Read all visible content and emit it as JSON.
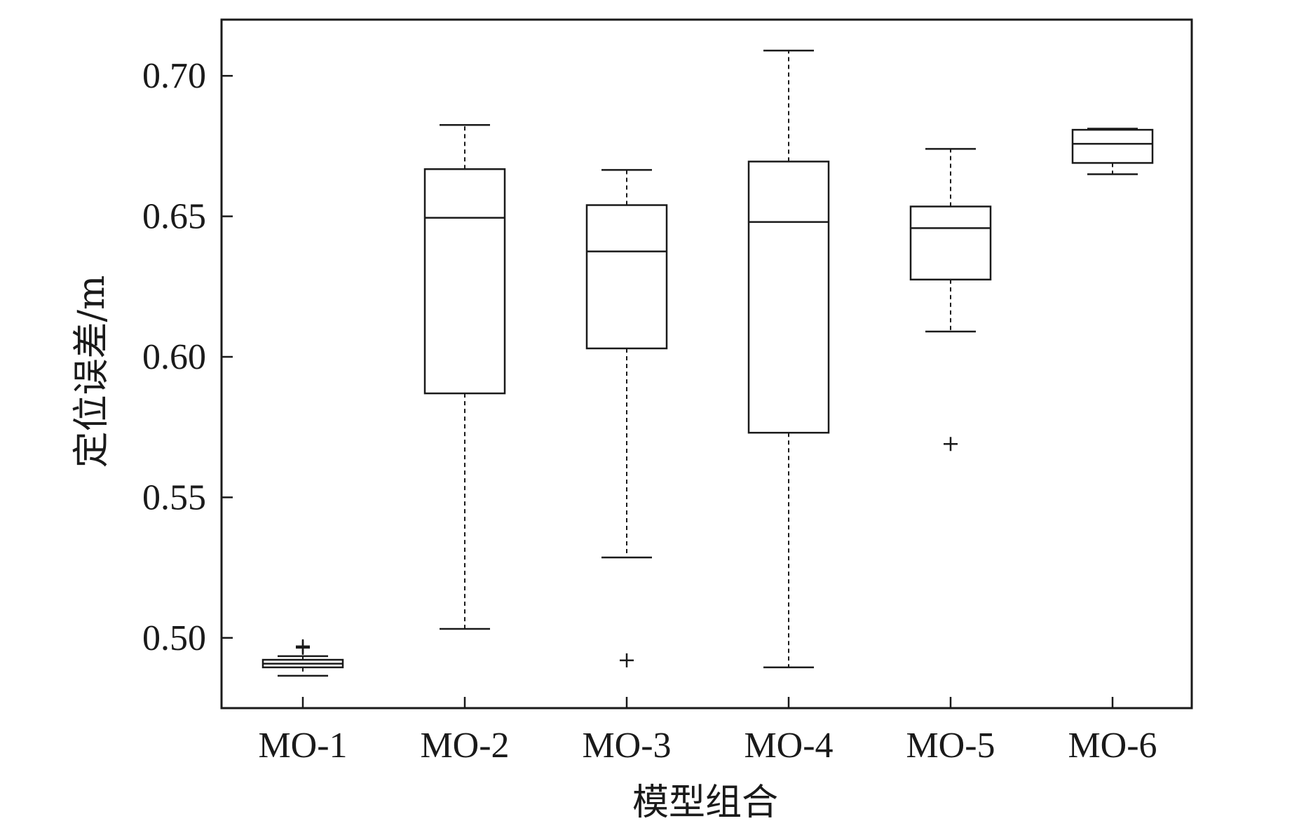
{
  "chart_data": {
    "type": "boxplot",
    "title": "",
    "xlabel": "模型组合",
    "ylabel": "定位误差/m",
    "ylim": [
      0.475,
      0.72
    ],
    "yticks": [
      "0.50",
      "0.55",
      "0.60",
      "0.65",
      "0.70"
    ],
    "categories": [
      "MO-1",
      "MO-2",
      "MO-3",
      "MO-4",
      "MO-5",
      "MO-6"
    ],
    "boxes": [
      {
        "label": "MO-1",
        "whisker_low": 0.4865,
        "q1": 0.4895,
        "median": 0.4908,
        "q3": 0.4922,
        "whisker_high": 0.4935,
        "outliers": [
          0.4965,
          0.497
        ]
      },
      {
        "label": "MO-2",
        "whisker_low": 0.5032,
        "q1": 0.587,
        "median": 0.6495,
        "q3": 0.6668,
        "whisker_high": 0.6825,
        "outliers": []
      },
      {
        "label": "MO-3",
        "whisker_low": 0.5286,
        "q1": 0.603,
        "median": 0.6375,
        "q3": 0.654,
        "whisker_high": 0.6665,
        "outliers": [
          0.492
        ]
      },
      {
        "label": "MO-4",
        "whisker_low": 0.4895,
        "q1": 0.573,
        "median": 0.648,
        "q3": 0.6695,
        "whisker_high": 0.709,
        "outliers": []
      },
      {
        "label": "MO-5",
        "whisker_low": 0.609,
        "q1": 0.6275,
        "median": 0.6458,
        "q3": 0.6535,
        "whisker_high": 0.674,
        "outliers": [
          0.569
        ]
      },
      {
        "label": "MO-6",
        "whisker_low": 0.665,
        "q1": 0.669,
        "median": 0.6758,
        "q3": 0.6808,
        "whisker_high": 0.6812,
        "outliers": []
      }
    ],
    "grid": false,
    "legend": "none"
  }
}
